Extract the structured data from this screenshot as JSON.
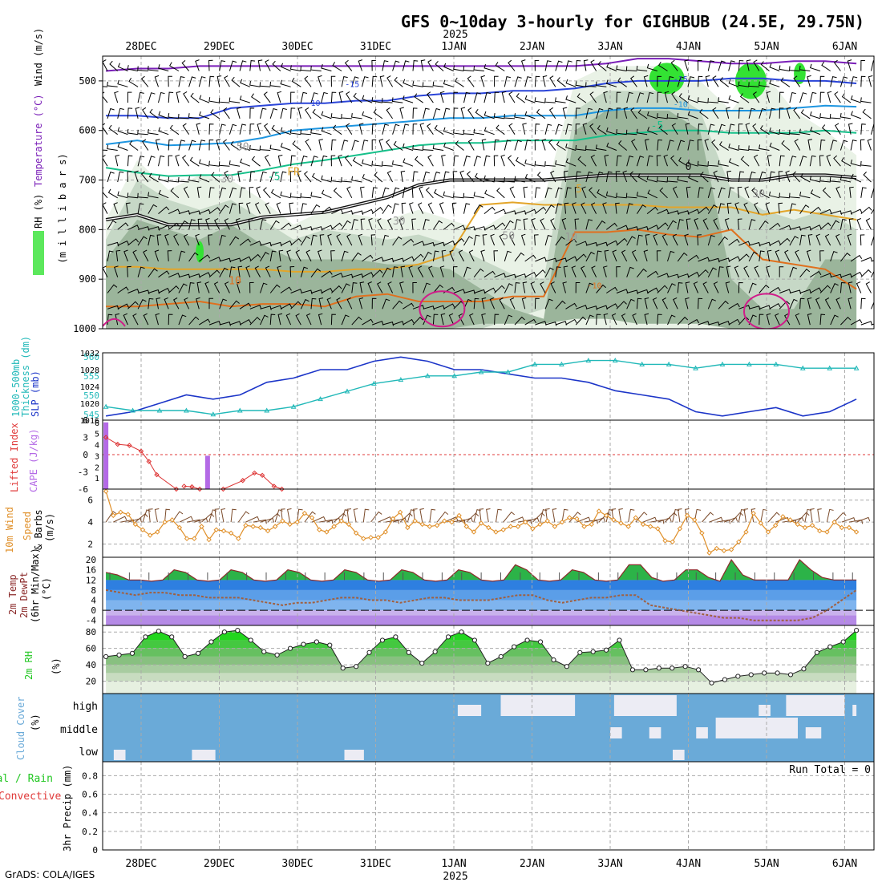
{
  "title": "GFS 0~10day 3-hourly for GIGHBUB (24.5E, 29.75N)",
  "footer": "GrADS: COLA/IGES",
  "colors": {
    "rh_dark": "#9bb59b",
    "rh_mid": "#c6d8c6",
    "rh_light": "#e9f2e6",
    "rh_bright": "#33e233",
    "thickness": "#20b8b8",
    "slp": "#1c35c8",
    "cape": "#b46ae6",
    "lifted": "#e03a3a",
    "wind": "#e0902a",
    "temp_fill": "#2b78e0",
    "rh2m": "#22c722",
    "cloud": "#6aaad8",
    "cloud_clear": "#ececf4"
  },
  "chart_data": {
    "type": "meteogram",
    "time_axis": {
      "top_year": "2025",
      "bottom_year": "2025",
      "day_labels": [
        "28DEC",
        "29DEC",
        "30DEC",
        "31DEC",
        "1JAN",
        "2JAN",
        "3JAN",
        "4JAN",
        "5JAN",
        "6JAN"
      ],
      "start_day_offset": -0.45,
      "end_day_offset": 9.15
    },
    "panels": [
      {
        "id": "upper-air",
        "ylabel_parts": [
          "RH (%)",
          "Temperature (°C)",
          "Wind (m/s)",
          "(m i l l i b a r s)"
        ],
        "y_ticks": [
          "500",
          "600",
          "700",
          "800",
          "900",
          "1000"
        ],
        "ylim": [
          1000,
          450
        ],
        "isotherm_labels": [
          "-15",
          "-15",
          "-10",
          "-10",
          "-5",
          "-5",
          "0",
          "5",
          "10",
          "-10",
          "FR",
          "50",
          "30",
          "30",
          "50",
          "30",
          "10"
        ],
        "isotherms": [
          {
            "name": "-20",
            "color": "#7a1fb8",
            "y": [
              480,
              475,
              475,
              470,
              470,
              470,
              470,
              470,
              470,
              470,
              470,
              470,
              470,
              470,
              470,
              470,
              465,
              455,
              455,
              460,
              465,
              465,
              460,
              460,
              465
            ]
          },
          {
            "name": "-15",
            "color": "#2a44d8",
            "y": [
              570,
              570,
              575,
              575,
              555,
              550,
              545,
              545,
              540,
              540,
              530,
              525,
              525,
              520,
              520,
              515,
              505,
              500,
              500,
              500,
              495,
              495,
              500,
              500,
              505
            ]
          },
          {
            "name": "-10",
            "color": "#1d95e0",
            "y": [
              628,
              620,
              630,
              628,
              625,
              615,
              600,
              595,
              590,
              585,
              580,
              575,
              575,
              570,
              570,
              570,
              560,
              555,
              555,
              560,
              560,
              560,
              555,
              550,
              552
            ]
          },
          {
            "name": "-5",
            "color": "#16c08a",
            "y": [
              675,
              685,
              692,
              690,
              690,
              680,
              668,
              660,
              650,
              640,
              630,
              625,
              625,
              620,
              620,
              620,
              610,
              605,
              600,
              600,
              605,
              605,
              605,
              600,
              605
            ]
          },
          {
            "name": "FR",
            "color": "#111111",
            "y": [
              780,
              770,
              790,
              790,
              790,
              775,
              770,
              765,
              750,
              735,
              710,
              700,
              700,
              700,
              700,
              695,
              690,
              690,
              690,
              690,
              700,
              700,
              690,
              690,
              695
            ]
          },
          {
            "name": "5",
            "color": "#e3a52a",
            "y": [
              875,
              875,
              880,
              880,
              880,
              880,
              885,
              885,
              880,
              880,
              870,
              850,
              750,
              745,
              750,
              750,
              750,
              750,
              755,
              755,
              755,
              770,
              760,
              770,
              780
            ]
          },
          {
            "name": "10",
            "color": "#e0701e",
            "y": [
              955,
              955,
              950,
              945,
              955,
              950,
              950,
              955,
              935,
              930,
              945,
              945,
              945,
              935,
              935,
              805,
              805,
              800,
              810,
              815,
              800,
              860,
              870,
              880,
              920
            ]
          }
        ],
        "rh_areas": [
          {
            "shade": "rh_light",
            "top": [
              780,
              660,
              720,
              690,
              700,
              740,
              790,
              760,
              770,
              780,
              760,
              780,
              800,
              760,
              740,
              500,
              470,
              470,
              470,
              500,
              560,
              480,
              560,
              600,
              650
            ],
            "bottom": [
              1000,
              1000,
              1000,
              1000,
              1000,
              1000,
              1000,
              1000,
              1000,
              1000,
              1000,
              1000,
              1000,
              1000,
              1000,
              1000,
              1000,
              1000,
              1000,
              1000,
              1000,
              1000,
              1000,
              1000,
              1000
            ]
          },
          {
            "shade": "rh_mid",
            "top": [
              820,
              700,
              740,
              760,
              740,
              780,
              820,
              800,
              810,
              820,
              810,
              830,
              860,
              890,
              900,
              560,
              520,
              520,
              520,
              560,
              720,
              760,
              780,
              760,
              800
            ],
            "bottom": [
              1000,
              1000,
              1000,
              1000,
              1000,
              1000,
              1000,
              1000,
              1000,
              1000,
              1000,
              1000,
              1000,
              980,
              960,
              960,
              960,
              980,
              980,
              980,
              1000,
              1000,
              1000,
              1000,
              1000
            ]
          },
          {
            "shade": "rh_dark",
            "top": [
              860,
              780,
              800,
              820,
              790,
              830,
              860,
              860,
              860,
              870,
              870,
              880,
              920,
              960,
              980,
              600,
              560,
              560,
              560,
              600,
              900,
              960,
              960,
              860,
              860
            ],
            "bottom": [
              1000,
              1000,
              1000,
              1000,
              1000,
              1000,
              1000,
              1000,
              1000,
              1000,
              1000,
              1000,
              990,
              990,
              990,
              980,
              980,
              990,
              990,
              990,
              1000,
              1000,
              1000,
              1000,
              1000
            ]
          }
        ]
      },
      {
        "id": "thickness-slp",
        "ylabel_parts": [
          "1000-500mb",
          "Thickness (dm)",
          "SLP (mb)"
        ],
        "y_ticks_left": [
          "545",
          "550",
          "555",
          "560"
        ],
        "y_ticks_right": [
          "1016",
          "1020",
          "1024",
          "1028",
          "1032"
        ],
        "series": [
          {
            "name": "SLP (mb)",
            "unit": "mb",
            "range": [
              1016,
              1032
            ],
            "values": [
              1017,
              1018,
              1020,
              1022,
              1021,
              1022,
              1025,
              1026,
              1028,
              1028,
              1030,
              1031,
              1030,
              1028,
              1028,
              1027,
              1026,
              1026,
              1025,
              1023,
              1022,
              1021,
              1018,
              1017,
              1018,
              1019,
              1017,
              1018,
              1021
            ]
          },
          {
            "name": "1000-500mb Thickness (dm)",
            "unit": "dm",
            "range": [
              543.5,
              561
            ],
            "values": [
              547,
              546,
              546,
              546,
              545,
              546,
              546,
              547,
              549,
              551,
              553,
              554,
              555,
              555,
              556,
              556,
              558,
              558,
              559,
              559,
              558,
              558,
              557,
              558,
              558,
              558,
              557,
              557,
              557
            ]
          }
        ]
      },
      {
        "id": "stability",
        "ylabel_parts": [
          "Lifted Index",
          "CAPE (J/kg)"
        ],
        "y_ticks_left": [
          "6",
          "3",
          "0",
          "-3",
          "-6"
        ],
        "y_ticks_right": [
          "1",
          "2",
          "3",
          "4",
          "5",
          "6"
        ],
        "cape_bars": [
          {
            "day": -0.45,
            "value": 6
          },
          {
            "day": 0.85,
            "value": 3
          }
        ],
        "lifted_index": [
          {
            "day": -0.45,
            "value": -3
          },
          {
            "day": -0.3,
            "value": -1.8
          },
          {
            "day": -0.15,
            "value": -1.6
          },
          {
            "day": 0.0,
            "value": -0.6
          },
          {
            "day": 0.1,
            "value": 1.2
          },
          {
            "day": 0.2,
            "value": 3.5
          },
          {
            "day": 0.45,
            "value": 6
          },
          {
            "day": 0.55,
            "value": 5.5
          },
          {
            "day": 0.65,
            "value": 5.6
          },
          {
            "day": 0.75,
            "value": 6.2
          },
          {
            "day": 1.05,
            "value": 7
          },
          {
            "day": 1.3,
            "value": 4.5
          },
          {
            "day": 1.45,
            "value": 3.2
          },
          {
            "day": 1.55,
            "value": 3.6
          },
          {
            "day": 1.7,
            "value": 5.5
          },
          {
            "day": 1.8,
            "value": 7
          }
        ]
      },
      {
        "id": "wind10m",
        "ylabel_parts": [
          "10m Wind",
          "Speed",
          "& Barbs",
          "(m/s)"
        ],
        "y_ticks": [
          "2",
          "4",
          "6"
        ],
        "ylim": [
          0.8,
          7
        ],
        "values": [
          6.8,
          4.6,
          4.9,
          4.7,
          3.8,
          3.3,
          2.8,
          3.1,
          4.0,
          4.2,
          3.5,
          2.5,
          2.5,
          3.6,
          2.4,
          3.3,
          3.2,
          3.0,
          2.5,
          3.7,
          3.6,
          3.5,
          3.2,
          3.6,
          4.1,
          3.8,
          4.0,
          4.8,
          4.4,
          3.3,
          3.1,
          3.6,
          4.1,
          3.8,
          3.0,
          2.5,
          2.6,
          2.6,
          3.1,
          4.3,
          4.9,
          3.5,
          4.1,
          3.8,
          3.6,
          3.7,
          4.1,
          4.0,
          4.6,
          3.6,
          3.1,
          3.9,
          3.5,
          3.1,
          3.3,
          3.6,
          3.6,
          4.0,
          3.4,
          3.8,
          4.1,
          3.6,
          4.0,
          4.4,
          4.3,
          3.6,
          3.8,
          5.0,
          4.6,
          4.2,
          3.9,
          3.6,
          4.4,
          3.8,
          3.6,
          3.4,
          2.3,
          2.2,
          3.4,
          4.6,
          4.2,
          3.0,
          1.2,
          1.6,
          1.4,
          1.5,
          2.2,
          3.1,
          4.8,
          3.9,
          3.1,
          3.7,
          4.5,
          4.2,
          3.8,
          3.5,
          3.7,
          3.2,
          3.1,
          4.0,
          3.5,
          3.5,
          3.1
        ]
      },
      {
        "id": "temperature",
        "ylabel_parts": [
          "2m Temp",
          "2m DewPt",
          "(6hr Min/Max)",
          "(°C)"
        ],
        "y_ticks": [
          "-4",
          "0",
          "4",
          "8",
          "12",
          "16",
          "20"
        ],
        "ylim": [
          -6,
          21
        ],
        "temp": [
          15,
          14,
          12,
          12,
          11.5,
          12,
          16,
          15,
          12,
          11.5,
          12,
          16,
          15,
          12,
          11.5,
          12,
          16,
          15,
          12,
          11.5,
          12,
          16,
          15,
          12,
          11.5,
          12,
          16,
          15,
          12,
          11.5,
          12,
          16,
          15,
          12,
          11.5,
          12,
          18,
          16,
          12,
          11.5,
          12,
          16,
          15,
          12,
          11.5,
          12,
          18,
          18,
          13,
          11.5,
          12,
          16,
          16,
          13,
          11.5,
          20,
          14,
          12,
          12,
          12,
          12,
          20,
          16,
          13,
          12,
          12,
          12
        ],
        "dewpoint": [
          8,
          7,
          6,
          7,
          7,
          6,
          6,
          5,
          5,
          5,
          4,
          3,
          2,
          3,
          3,
          4,
          5,
          5,
          4,
          4,
          3,
          4,
          5,
          5,
          4,
          4,
          4,
          5,
          6,
          6,
          4,
          3,
          4,
          5,
          5,
          6,
          6,
          2,
          1,
          0,
          -1,
          -2,
          -3,
          -3,
          -4,
          -4,
          -4,
          -4,
          -3,
          0,
          4,
          8
        ]
      },
      {
        "id": "rh2m",
        "ylabel_parts": [
          "2m RH",
          "(%)"
        ],
        "y_ticks": [
          "20",
          "40",
          "60",
          "80"
        ],
        "ylim": [
          5,
          88
        ],
        "values": [
          50,
          52,
          54,
          74,
          81,
          74,
          50,
          54,
          68,
          80,
          82,
          70,
          56,
          52,
          60,
          65,
          68,
          64,
          36,
          38,
          55,
          70,
          74,
          55,
          42,
          56,
          74,
          80,
          70,
          42,
          50,
          62,
          70,
          68,
          46,
          38,
          55,
          56,
          58,
          70,
          34,
          34,
          36,
          36,
          38,
          34,
          18,
          22,
          26,
          28,
          30,
          30,
          28,
          35,
          55,
          62,
          68,
          82
        ]
      },
      {
        "id": "cloud",
        "ylabel_parts": [
          "Cloud Cover",
          "(%)"
        ],
        "row_labels": [
          "high",
          "middle",
          "low"
        ],
        "high_clear": [
          [
            4.05,
            4.35
          ],
          [
            4.6,
            5.55
          ],
          [
            6.05,
            6.85
          ],
          [
            7.9,
            8.05
          ],
          [
            8.25,
            9.0
          ],
          [
            9.1,
            9.15
          ]
        ],
        "middle_clear": [
          [
            6.0,
            6.15
          ],
          [
            6.5,
            6.65
          ],
          [
            7.1,
            7.25
          ],
          [
            7.35,
            8.4
          ],
          [
            8.5,
            8.7
          ]
        ],
        "low_clear": [
          [
            -0.35,
            -0.2
          ],
          [
            0.65,
            0.95
          ],
          [
            2.6,
            2.85
          ],
          [
            6.8,
            6.95
          ]
        ]
      },
      {
        "id": "precip",
        "ylabel_parts": [
          "Total / Rain",
          "Convective",
          "3hr Precip (mm)"
        ],
        "y_ticks": [
          "0",
          "0.2",
          "0.4",
          "0.6",
          "0.8"
        ],
        "run_total_label": "Run Total = 0",
        "values": []
      }
    ]
  }
}
